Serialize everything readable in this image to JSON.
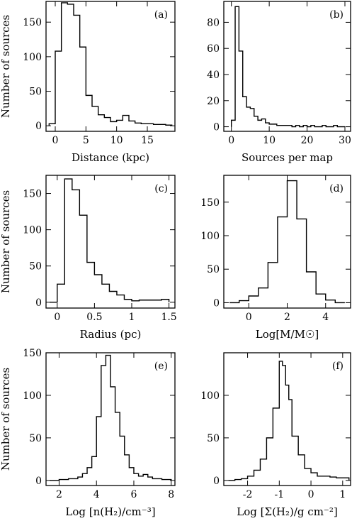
{
  "figure": {
    "ylabel": "Number of sources"
  },
  "chart_data": [
    {
      "id": "a",
      "type": "histogram",
      "panel_label": "(a)",
      "xlabel": "Distance (kpc)",
      "ylabel": "Number of sources",
      "xlim": [
        -1.5,
        19.5
      ],
      "ylim": [
        -8,
        180
      ],
      "xticks": [
        0,
        5,
        10,
        15
      ],
      "yticks": [
        0,
        50,
        100,
        150
      ],
      "bin_edges": [
        -1,
        0,
        1,
        2,
        3,
        4,
        5,
        6,
        7,
        8,
        9,
        10,
        11,
        12,
        13,
        14,
        15,
        16,
        17,
        18,
        19
      ],
      "values": [
        3,
        108,
        178,
        176,
        160,
        114,
        44,
        28,
        16,
        12,
        6,
        8,
        15,
        7,
        4,
        3,
        3,
        2,
        2,
        1
      ]
    },
    {
      "id": "b",
      "type": "histogram",
      "panel_label": "(b)",
      "xlabel": "Sources per map",
      "ylabel": "",
      "xlim": [
        -2,
        31.5
      ],
      "ylim": [
        -3.5,
        96
      ],
      "xticks": [
        0,
        10,
        20,
        30
      ],
      "yticks": [
        0,
        20,
        40,
        60,
        80
      ],
      "bin_edges": [
        0,
        1,
        2,
        3,
        4,
        5,
        6,
        7,
        8,
        9,
        10,
        11,
        12,
        13,
        14,
        15,
        16,
        17,
        18,
        19,
        20,
        21,
        22,
        23,
        24,
        25,
        26,
        27,
        28,
        29,
        30
      ],
      "values": [
        5,
        92,
        58,
        23,
        15,
        14,
        8,
        5,
        6,
        3,
        2,
        2,
        1,
        1,
        1,
        1,
        0,
        1,
        0,
        1,
        0,
        1,
        0,
        0,
        1,
        0,
        0,
        1,
        0,
        0
      ]
    },
    {
      "id": "c",
      "type": "histogram",
      "panel_label": "(c)",
      "xlabel": "Radius (pc)",
      "ylabel": "Number of sources",
      "xlim": [
        -0.15,
        1.58
      ],
      "ylim": [
        -8,
        175
      ],
      "xticks": [
        0,
        0.5,
        1,
        1.5
      ],
      "yticks": [
        0,
        50,
        100,
        150
      ],
      "bin_edges": [
        -0.1,
        0.0,
        0.1,
        0.2,
        0.3,
        0.4,
        0.5,
        0.6,
        0.7,
        0.8,
        0.9,
        1.0,
        1.1,
        1.2,
        1.3,
        1.4,
        1.5
      ],
      "values": [
        0,
        25,
        170,
        155,
        120,
        55,
        38,
        25,
        15,
        10,
        4,
        2,
        3,
        3,
        3,
        4
      ]
    },
    {
      "id": "d",
      "type": "histogram",
      "panel_label": "(d)",
      "xlabel": "Log[M/M☉]",
      "ylabel": "",
      "xlim": [
        -1.3,
        5.3
      ],
      "ylim": [
        -8,
        190
      ],
      "xticks": [
        0,
        2,
        4
      ],
      "yticks": [
        0,
        50,
        100,
        150
      ],
      "bin_edges": [
        -1,
        -0.5,
        0,
        0.5,
        1,
        1.5,
        2,
        2.5,
        3,
        3.5,
        4,
        4.5,
        5
      ],
      "values": [
        0,
        3,
        10,
        22,
        60,
        128,
        182,
        125,
        46,
        13,
        4,
        0
      ]
    },
    {
      "id": "e",
      "type": "histogram",
      "panel_label": "(e)",
      "xlabel": "Log [n(H₂)/cm⁻³]",
      "ylabel": "Number of sources",
      "xlim": [
        1.3,
        8.2
      ],
      "ylim": [
        -6,
        150
      ],
      "xticks": [
        2,
        4,
        6,
        8
      ],
      "yticks": [
        0,
        50,
        100,
        150
      ],
      "bin_edges": [
        1.5,
        2.0,
        2.5,
        3.0,
        3.25,
        3.5,
        3.75,
        4.0,
        4.25,
        4.5,
        4.75,
        5.0,
        5.25,
        5.5,
        5.75,
        6.0,
        6.25,
        6.5,
        6.75,
        7.0,
        7.5,
        8.0
      ],
      "values": [
        0,
        1,
        2,
        4,
        8,
        15,
        28,
        75,
        135,
        147,
        110,
        80,
        52,
        30,
        15,
        8,
        5,
        7,
        4,
        2,
        1
      ]
    },
    {
      "id": "f",
      "type": "histogram",
      "panel_label": "(f)",
      "xlabel": "Log [Σ(H₂)/g cm⁻²]",
      "ylabel": "",
      "xlim": [
        -2.75,
        1.25
      ],
      "ylim": [
        -6,
        150
      ],
      "xticks": [
        -2,
        -1,
        0,
        1
      ],
      "yticks": [
        0,
        50,
        100
      ],
      "bin_edges": [
        -2.6,
        -2.4,
        -2.2,
        -2.0,
        -1.8,
        -1.6,
        -1.4,
        -1.2,
        -1.0,
        -0.9,
        -0.8,
        -0.7,
        -0.6,
        -0.4,
        -0.2,
        0.0,
        0.2,
        0.4,
        0.6,
        0.8,
        1.0,
        1.2
      ],
      "values": [
        0,
        1,
        2,
        5,
        12,
        25,
        50,
        85,
        140,
        135,
        112,
        95,
        52,
        30,
        14,
        9,
        5,
        5,
        4,
        3,
        3
      ]
    }
  ]
}
